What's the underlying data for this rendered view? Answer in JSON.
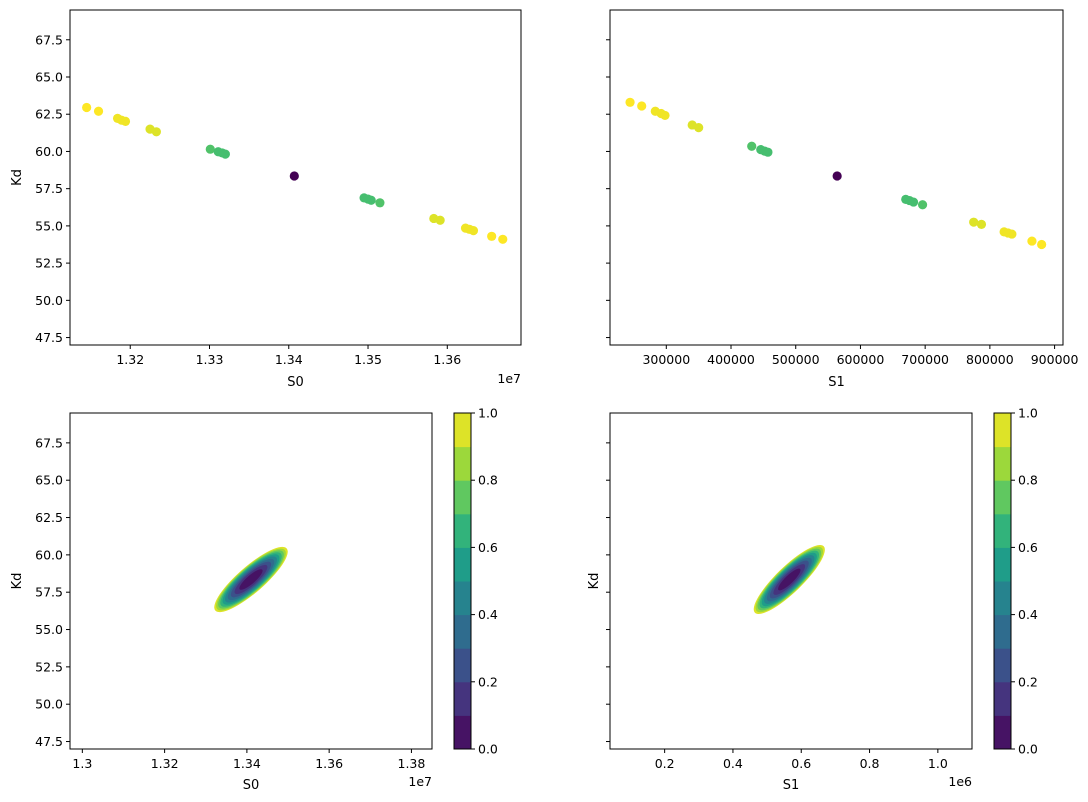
{
  "chart_data": [
    {
      "type": "scatter",
      "title": "",
      "xlabel": "S0",
      "ylabel": "Kd",
      "x_offset_text": "1e7",
      "xlim": [
        13124000,
        13693000
      ],
      "ylim": [
        47.0,
        69.5
      ],
      "xticks": [
        1.32,
        1.33,
        1.34,
        1.35,
        1.36
      ],
      "xtick_scale": 10000000,
      "yticks": [
        47.5,
        50.0,
        52.5,
        55.0,
        57.5,
        60.0,
        62.5,
        65.0,
        67.5
      ],
      "ytick_labels_shown": true,
      "colormap": "viridis",
      "points": [
        {
          "x": 13145000,
          "y": 62.95,
          "c": 1.0
        },
        {
          "x": 13160000,
          "y": 62.7,
          "c": 1.0
        },
        {
          "x": 13184000,
          "y": 62.22,
          "c": 0.98
        },
        {
          "x": 13189000,
          "y": 62.1,
          "c": 0.98
        },
        {
          "x": 13194000,
          "y": 62.02,
          "c": 0.98
        },
        {
          "x": 13225000,
          "y": 61.5,
          "c": 0.95
        },
        {
          "x": 13233000,
          "y": 61.32,
          "c": 0.95
        },
        {
          "x": 13301000,
          "y": 60.15,
          "c": 0.72
        },
        {
          "x": 13311000,
          "y": 59.98,
          "c": 0.7
        },
        {
          "x": 13316000,
          "y": 59.9,
          "c": 0.7
        },
        {
          "x": 13320000,
          "y": 59.82,
          "c": 0.7
        },
        {
          "x": 13407000,
          "y": 58.35,
          "c": 0.0
        },
        {
          "x": 13495000,
          "y": 56.88,
          "c": 0.7
        },
        {
          "x": 13500000,
          "y": 56.8,
          "c": 0.7
        },
        {
          "x": 13504000,
          "y": 56.72,
          "c": 0.7
        },
        {
          "x": 13515000,
          "y": 56.55,
          "c": 0.72
        },
        {
          "x": 13583000,
          "y": 55.5,
          "c": 0.95
        },
        {
          "x": 13591000,
          "y": 55.38,
          "c": 0.95
        },
        {
          "x": 13623000,
          "y": 54.85,
          "c": 0.98
        },
        {
          "x": 13628000,
          "y": 54.77,
          "c": 0.98
        },
        {
          "x": 13633000,
          "y": 54.68,
          "c": 0.98
        },
        {
          "x": 13656000,
          "y": 54.3,
          "c": 1.0
        },
        {
          "x": 13670000,
          "y": 54.1,
          "c": 1.0
        }
      ]
    },
    {
      "type": "scatter",
      "title": "",
      "xlabel": "S1",
      "ylabel": "",
      "xlim": [
        213000,
        913000
      ],
      "ylim": [
        47.0,
        69.5
      ],
      "xticks": [
        300000,
        400000,
        500000,
        600000,
        700000,
        800000,
        900000
      ],
      "xtick_scale": 1,
      "yticks": [
        47.5,
        50.0,
        52.5,
        55.0,
        57.5,
        60.0,
        62.5,
        65.0,
        67.5
      ],
      "ytick_labels_shown": false,
      "colormap": "viridis",
      "points": [
        {
          "x": 244000,
          "y": 63.3,
          "c": 1.0
        },
        {
          "x": 262000,
          "y": 63.05,
          "c": 1.0
        },
        {
          "x": 283000,
          "y": 62.7,
          "c": 0.98
        },
        {
          "x": 292000,
          "y": 62.55,
          "c": 0.98
        },
        {
          "x": 298000,
          "y": 62.42,
          "c": 0.98
        },
        {
          "x": 340000,
          "y": 61.78,
          "c": 0.95
        },
        {
          "x": 350000,
          "y": 61.6,
          "c": 0.95
        },
        {
          "x": 432000,
          "y": 60.35,
          "c": 0.72
        },
        {
          "x": 446000,
          "y": 60.12,
          "c": 0.7
        },
        {
          "x": 452000,
          "y": 60.02,
          "c": 0.7
        },
        {
          "x": 457000,
          "y": 59.95,
          "c": 0.7
        },
        {
          "x": 564000,
          "y": 58.35,
          "c": 0.0
        },
        {
          "x": 670000,
          "y": 56.78,
          "c": 0.7
        },
        {
          "x": 676000,
          "y": 56.7,
          "c": 0.7
        },
        {
          "x": 682000,
          "y": 56.6,
          "c": 0.7
        },
        {
          "x": 696000,
          "y": 56.42,
          "c": 0.72
        },
        {
          "x": 775000,
          "y": 55.25,
          "c": 0.95
        },
        {
          "x": 787000,
          "y": 55.1,
          "c": 0.95
        },
        {
          "x": 822000,
          "y": 54.6,
          "c": 0.98
        },
        {
          "x": 828000,
          "y": 54.52,
          "c": 0.98
        },
        {
          "x": 834000,
          "y": 54.45,
          "c": 0.98
        },
        {
          "x": 865000,
          "y": 53.98,
          "c": 1.0
        },
        {
          "x": 880000,
          "y": 53.75,
          "c": 1.0
        }
      ]
    },
    {
      "type": "heatmap",
      "title": "",
      "xlabel": "S0",
      "ylabel": "Kd",
      "x_offset_text": "1e7",
      "xlim": [
        12970000,
        13850000
      ],
      "ylim": [
        47.0,
        69.5
      ],
      "xticks": [
        1.3,
        1.32,
        1.34,
        1.36,
        1.38
      ],
      "xtick_scale": 10000000,
      "yticks": [
        47.5,
        50.0,
        52.5,
        55.0,
        57.5,
        60.0,
        62.5,
        65.0,
        67.5
      ],
      "ytick_labels_shown": true,
      "contour": {
        "center": [
          13410000,
          58.35
        ],
        "max_level": 1.0,
        "levels": [
          0.1,
          0.2,
          0.3,
          0.4,
          0.5,
          0.6,
          0.7,
          0.8,
          0.9,
          1.0
        ],
        "semi_major": 115000,
        "semi_minor": 32000,
        "angle_deg": -41
      },
      "colorbar": {
        "ticks": [
          "0.0",
          "0.2",
          "0.4",
          "0.6",
          "0.8",
          "1.0"
        ],
        "levels": 10,
        "colormap": "viridis"
      }
    },
    {
      "type": "heatmap",
      "title": "",
      "xlabel": "S1",
      "ylabel": "Kd",
      "x_offset_text": "1e6",
      "xlim": [
        40000,
        1100000
      ],
      "ylim": [
        47.0,
        69.5
      ],
      "xticks": [
        0.2,
        0.4,
        0.6,
        0.8,
        1.0
      ],
      "xtick_scale": 1000000,
      "yticks": [
        47.5,
        50.0,
        52.5,
        55.0,
        57.5,
        60.0,
        62.5,
        65.0,
        67.5
      ],
      "ytick_labels_shown": false,
      "contour": {
        "center": [
          565000,
          58.35
        ],
        "max_level": 1.0,
        "levels": [
          0.1,
          0.2,
          0.3,
          0.4,
          0.5,
          0.6,
          0.7,
          0.8,
          0.9,
          1.0
        ],
        "semi_major": 140000,
        "semi_minor": 38000,
        "angle_deg": -44
      },
      "colorbar": {
        "ticks": [
          "0.0",
          "0.2",
          "0.4",
          "0.6",
          "0.8",
          "1.0"
        ],
        "levels": 10,
        "colormap": "viridis"
      }
    }
  ]
}
